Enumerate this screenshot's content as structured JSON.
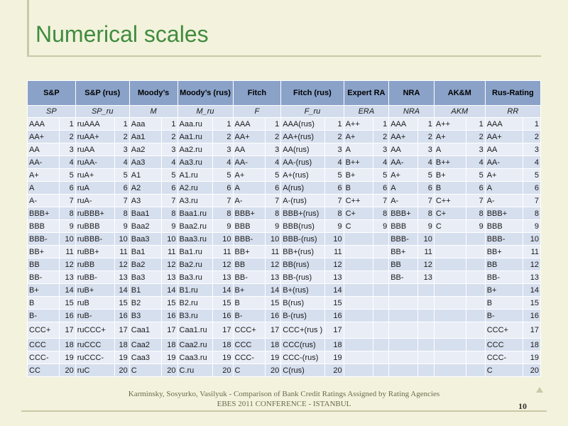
{
  "title": "Numerical scales",
  "headers": [
    "S&P",
    "S&P (rus)",
    "Moody’s",
    "Moody’s (rus)",
    "Fitch",
    "Fitch (rus)",
    "Expert RA",
    "NRA",
    "AK&M",
    "Rus-Rating"
  ],
  "subheaders": [
    "SP",
    "SP_ru",
    "M",
    "M_ru",
    "F",
    "F_ru",
    "ERA",
    "NRA",
    "AKM",
    "RR"
  ],
  "rows": [
    [
      "AAA",
      "1",
      "ruAAA",
      "1",
      "Aaa",
      "1",
      "Aaa.ru",
      "1",
      "AAA",
      "1",
      "AAA(rus)",
      "1",
      "A++",
      "1",
      "AAA",
      "1",
      "A++",
      "1",
      "AAA",
      "1"
    ],
    [
      "AA+",
      "2",
      "ruAA+",
      "2",
      "Aa1",
      "2",
      "Aa1.ru",
      "2",
      "AA+",
      "2",
      "AA+(rus)",
      "2",
      "A+",
      "2",
      "AA+",
      "2",
      "A+",
      "2",
      "AA+",
      "2"
    ],
    [
      "AA",
      "3",
      "ruAA",
      "3",
      "Aa2",
      "3",
      "Aa2.ru",
      "3",
      "AA",
      "3",
      "AA(rus)",
      "3",
      "A",
      "3",
      "AA",
      "3",
      "A",
      "3",
      "AA",
      "3"
    ],
    [
      "AA-",
      "4",
      "ruAA-",
      "4",
      "Aa3",
      "4",
      "Aa3.ru",
      "4",
      "AA-",
      "4",
      "AA-(rus)",
      "4",
      "B++",
      "4",
      "AA-",
      "4",
      "B++",
      "4",
      "AA-",
      "4"
    ],
    [
      "A+",
      "5",
      "ruA+",
      "5",
      "A1",
      "5",
      "A1.ru",
      "5",
      "A+",
      "5",
      "A+(rus)",
      "5",
      "B+",
      "5",
      "A+",
      "5",
      "B+",
      "5",
      "A+",
      "5"
    ],
    [
      "A",
      "6",
      "ruA",
      "6",
      "A2",
      "6",
      "A2.ru",
      "6",
      "A",
      "6",
      "A(rus)",
      "6",
      "B",
      "6",
      "A",
      "6",
      "B",
      "6",
      "A",
      "6"
    ],
    [
      "A-",
      "7",
      "ruA-",
      "7",
      "A3",
      "7",
      "A3.ru",
      "7",
      "A-",
      "7",
      "A-(rus)",
      "7",
      "C++",
      "7",
      "A-",
      "7",
      "C++",
      "7",
      "A-",
      "7"
    ],
    [
      "BBB+",
      "8",
      "ruBBB+",
      "8",
      "Baa1",
      "8",
      "Baa1.ru",
      "8",
      "BBB+",
      "8",
      "BBB+(rus)",
      "8",
      "C+",
      "8",
      "BBB+",
      "8",
      "C+",
      "8",
      "BBB+",
      "8"
    ],
    [
      "BBB",
      "9",
      "ruBBB",
      "9",
      "Baa2",
      "9",
      "Baa2.ru",
      "9",
      "BBB",
      "9",
      "BBB(rus)",
      "9",
      "C",
      "9",
      "BBB",
      "9",
      "C",
      "9",
      "BBB",
      "9"
    ],
    [
      "BBB-",
      "10",
      "ruBBB-",
      "10",
      "Baa3",
      "10",
      "Baa3.ru",
      "10",
      "BBB-",
      "10",
      "BBB-(rus)",
      "10",
      "",
      "",
      "BBB-",
      "10",
      "",
      "",
      "BBB-",
      "10"
    ],
    [
      "BB+",
      "11",
      "ruBB+",
      "11",
      "Ba1",
      "11",
      "Ba1.ru",
      "11",
      "BB+",
      "11",
      "BB+(rus)",
      "11",
      "",
      "",
      "BB+",
      "11",
      "",
      "",
      "BB+",
      "11"
    ],
    [
      "BB",
      "12",
      "ruBB",
      "12",
      "Ba2",
      "12",
      "Ba2.ru",
      "12",
      "BB",
      "12",
      "BB(rus)",
      "12",
      "",
      "",
      "BB",
      "12",
      "",
      "",
      "BB",
      "12"
    ],
    [
      "BB-",
      "13",
      "ruBB-",
      "13",
      "Ba3",
      "13",
      "Ba3.ru",
      "13",
      "BB-",
      "13",
      "BB-(rus)",
      "13",
      "",
      "",
      "BB-",
      "13",
      "",
      "",
      "BB-",
      "13"
    ],
    [
      "B+",
      "14",
      "ruB+",
      "14",
      "B1",
      "14",
      "B1.ru",
      "14",
      "B+",
      "14",
      "B+(rus)",
      "14",
      "",
      "",
      "",
      "",
      "",
      "",
      "B+",
      "14"
    ],
    [
      "B",
      "15",
      "ruB",
      "15",
      "B2",
      "15",
      "B2.ru",
      "15",
      "B",
      "15",
      "B(rus)",
      "15",
      "",
      "",
      "",
      "",
      "",
      "",
      "B",
      "15"
    ],
    [
      "B-",
      "16",
      "ruB-",
      "16",
      "B3",
      "16",
      "B3.ru",
      "16",
      "B-",
      "16",
      "B-(rus)",
      "16",
      "",
      "",
      "",
      "",
      "",
      "",
      "B-",
      "16"
    ],
    [
      "CCC+",
      "17",
      "ruCCC+",
      "17",
      "Caa1",
      "17",
      "Caa1.ru",
      "17",
      "CCC+",
      "17",
      "CCC+(rus )",
      "17",
      "",
      "",
      "",
      "",
      "",
      "",
      "CCC+",
      "17"
    ],
    [
      "CCC",
      "18",
      "ruCCC",
      "18",
      "Caa2",
      "18",
      "Caa2.ru",
      "18",
      "CCC",
      "18",
      "CCC(rus)",
      "18",
      "",
      "",
      "",
      "",
      "",
      "",
      "CCC",
      "18"
    ],
    [
      "CCC-",
      "19",
      "ruCCC-",
      "19",
      "Caa3",
      "19",
      "Caa3.ru",
      "19",
      "CCC-",
      "19",
      "CCC-(rus)",
      "19",
      "",
      "",
      "",
      "",
      "",
      "",
      "CCC-",
      "19"
    ],
    [
      "CC",
      "20",
      "ruC",
      "20",
      "C",
      "20",
      "C.ru",
      "20",
      "C",
      "20",
      "C(rus)",
      "20",
      "",
      "",
      "",
      "",
      "",
      "",
      "C",
      "20"
    ]
  ],
  "footer": {
    "line1": "Karminsky, Sosyurko, Vasilyuk - Comparison of Bank Credit Ratings Assigned by Rating Agencies",
    "line2": "EBES 2011 CONFERENCE - ISTANBUL",
    "page": "10"
  },
  "colors": {
    "title": "#3f8c3f",
    "header_bg": "#8aa2c8",
    "row_light": "#e8edf6",
    "row_dark": "#d6dfee",
    "background": "#f3f2dc"
  }
}
